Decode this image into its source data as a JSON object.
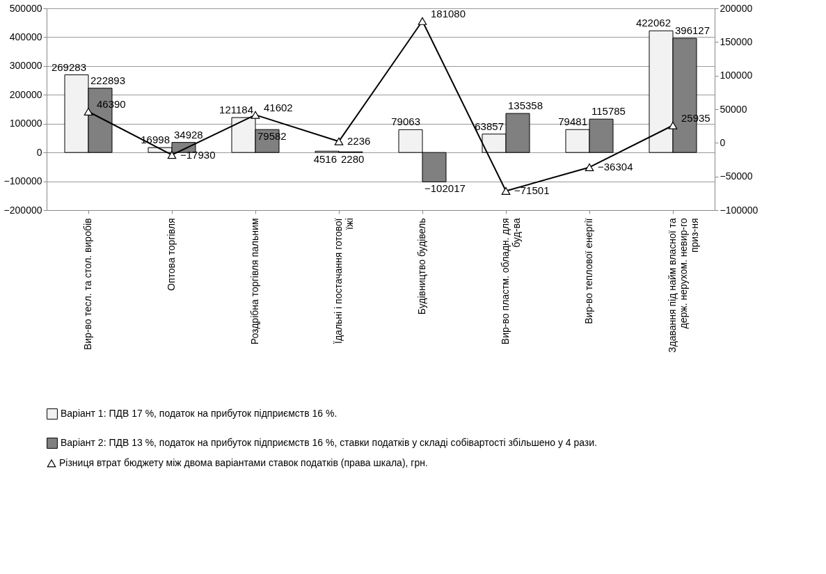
{
  "chart_data": {
    "type": "bar",
    "categories": [
      "Вир-во тесл. та стол. виробів",
      "Оптова торгівля",
      "Роздрібна торгівля пальним",
      "Їдальні і постачання готової їжі",
      "Будівництво будівель",
      "Вир-во пластм. обладн. для буд-ва",
      "Вир-во теплової енергії",
      "Здавання під найм власної та держ. нерухом. невир-го приз-ня"
    ],
    "series": [
      {
        "name": "Варіант 1: ПДВ 17 %, податок на прибуток підприємств 16 %.",
        "color": "#f2f2f2",
        "values": [
          269283,
          16998,
          121184,
          4516,
          79063,
          63857,
          79481,
          422062
        ]
      },
      {
        "name": "Варіант 2: ПДВ 13 %, податок на прибуток підприємств 16 %, ставки податків у складі собівартості збільшено у 4 рази.",
        "color": "#808080",
        "values": [
          222893,
          34928,
          79582,
          2280,
          -102017,
          135358,
          115785,
          396127
        ]
      },
      {
        "name": "Різниця втрат бюджету між двома варіантами ставок податків (права шкала), грн.",
        "type": "line",
        "axis": "y2",
        "color": "#000000",
        "marker": "triangle",
        "values": [
          46390,
          -17930,
          41602,
          2236,
          181080,
          -71501,
          -36304,
          25935
        ]
      }
    ],
    "ylim": [
      -200000,
      500000
    ],
    "yticks": [
      -200000,
      -100000,
      0,
      100000,
      200000,
      300000,
      400000,
      500000
    ],
    "y2lim": [
      -100000,
      200000
    ],
    "y2ticks": [
      -100000,
      -50000,
      0,
      50000,
      100000,
      150000,
      200000
    ],
    "grid": "y",
    "legend": "bottom",
    "data_labels": true
  }
}
